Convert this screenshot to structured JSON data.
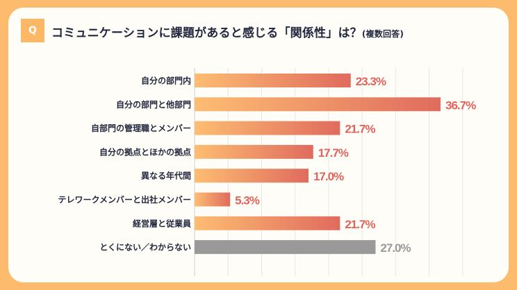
{
  "header": {
    "badge": "Q",
    "title": "コミュニケーションに課題があると感じる「関係性」は？",
    "note": "(複数回答)"
  },
  "colors": {
    "background": "#fdbb6e",
    "bar_start": "#fdbd72",
    "bar_end": "#e06b5e",
    "value_text": "#e0645a",
    "other_bar": "#999999",
    "other_text": "#999999"
  },
  "chart_data": {
    "type": "bar",
    "orientation": "horizontal",
    "categories": [
      "自分の部門内",
      "自分の部門と他部門",
      "自部門の管理職とメンバー",
      "自分の拠点とほかの拠点",
      "異なる年代間",
      "テレワークメンバーと出社メンバー",
      "経営層と従業員",
      "とくにない／わからない"
    ],
    "values": [
      23.3,
      36.7,
      21.7,
      17.7,
      17.0,
      5.3,
      21.7,
      27.0
    ],
    "value_labels": [
      "23.3%",
      "36.7%",
      "21.7%",
      "17.7%",
      "17.0%",
      "5.3%",
      "21.7%",
      "27.0%"
    ],
    "xlim": [
      0,
      40
    ],
    "grid": true
  }
}
